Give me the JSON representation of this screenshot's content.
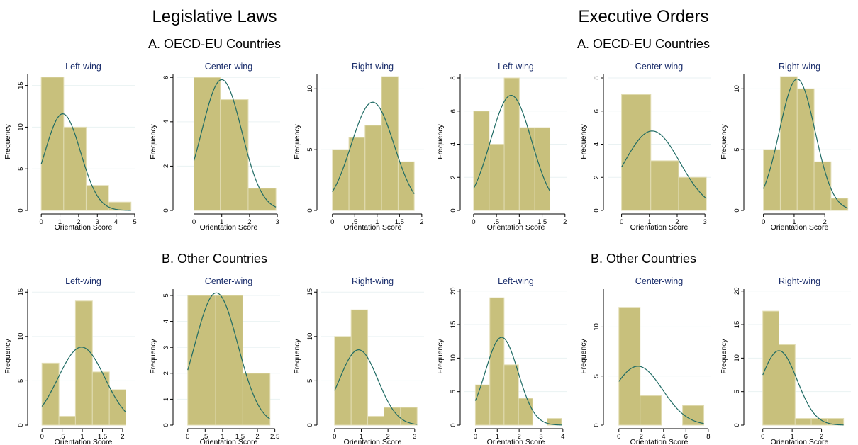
{
  "titles": {
    "left": "Legislative Laws",
    "right": "Executive Orders",
    "panel_a": "A. OECD-EU Countries",
    "panel_b": "B. Other Countries"
  },
  "colors": {
    "bar_fill": "#c8c07c",
    "bar_edge": "#e2ddb4",
    "curve": "#1f6b64",
    "title_text": "#1a2d6b",
    "axis": "#000000",
    "grid": "#eaf2f3"
  },
  "chart_data": [
    {
      "type": "bar",
      "group": "Legislative Laws",
      "panel": "A. OECD-EU Countries",
      "title": "Left-wing",
      "xlabel": "Orientation Score",
      "ylabel": "Frequency",
      "xlim": [
        -0.5,
        5
      ],
      "ylim": [
        0,
        16.5
      ],
      "xticks": [
        0,
        1,
        2,
        3,
        4,
        5
      ],
      "xtick_labels": [
        "0",
        "1",
        "2",
        "3",
        "4",
        "5"
      ],
      "yticks": [
        0,
        5,
        10,
        15
      ],
      "ytick_labels": [
        "0",
        "5",
        "10",
        "15"
      ],
      "bins": [
        {
          "start": 0,
          "end": 1.2,
          "count": 16
        },
        {
          "start": 1.2,
          "end": 2.4,
          "count": 10
        },
        {
          "start": 2.4,
          "end": 3.6,
          "count": 3
        },
        {
          "start": 3.6,
          "end": 4.8,
          "count": 1
        }
      ],
      "normal_curve": {
        "mean": 1.15,
        "sd": 0.95,
        "peak": 11.6
      }
    },
    {
      "type": "bar",
      "group": "Legislative Laws",
      "panel": "A. OECD-EU Countries",
      "title": "Center-wing",
      "xlabel": "Orientation Score",
      "ylabel": "Frequency",
      "xlim": [
        -0.6,
        3.1
      ],
      "ylim": [
        0,
        6.2
      ],
      "xticks": [
        0,
        1,
        2,
        3
      ],
      "xtick_labels": [
        "0",
        "1",
        "2",
        "3"
      ],
      "yticks": [
        0,
        2,
        4,
        6
      ],
      "ytick_labels": [
        "0",
        "2",
        "4",
        "6"
      ],
      "bins": [
        {
          "start": 0,
          "end": 0.95,
          "count": 6
        },
        {
          "start": 0.95,
          "end": 1.95,
          "count": 5
        },
        {
          "start": 1.95,
          "end": 2.95,
          "count": 1
        }
      ],
      "normal_curve": {
        "mean": 1.0,
        "sd": 0.72,
        "peak": 5.9
      }
    },
    {
      "type": "bar",
      "group": "Legislative Laws",
      "panel": "A. OECD-EU Countries",
      "title": "Right-wing",
      "xlabel": "Orientation Score",
      "ylabel": "Frequency",
      "xlim": [
        -0.25,
        2.05
      ],
      "ylim": [
        0,
        11.3
      ],
      "xticks": [
        0,
        0.5,
        1,
        1.5,
        2
      ],
      "xtick_labels": [
        "0",
        ".5",
        "1",
        "1.5",
        "2"
      ],
      "yticks": [
        0,
        5,
        10
      ],
      "ytick_labels": [
        "0",
        "5",
        "10"
      ],
      "bins": [
        {
          "start": 0,
          "end": 0.37,
          "count": 5
        },
        {
          "start": 0.37,
          "end": 0.73,
          "count": 6
        },
        {
          "start": 0.73,
          "end": 1.1,
          "count": 7
        },
        {
          "start": 1.1,
          "end": 1.47,
          "count": 11
        },
        {
          "start": 1.47,
          "end": 1.83,
          "count": 4
        }
      ],
      "normal_curve": {
        "mean": 0.9,
        "sd": 0.48,
        "peak": 8.9
      }
    },
    {
      "type": "bar",
      "group": "Executive Orders",
      "panel": "A. OECD-EU Countries",
      "title": "Left-wing",
      "xlabel": "Orientation Score",
      "ylabel": "Frequency",
      "xlim": [
        -0.2,
        2.05
      ],
      "ylim": [
        0,
        8.3
      ],
      "xticks": [
        0,
        0.5,
        1,
        1.5,
        2
      ],
      "xtick_labels": [
        "0",
        ".5",
        "1",
        "1.5",
        "2"
      ],
      "yticks": [
        0,
        2,
        4,
        6,
        8
      ],
      "ytick_labels": [
        "0",
        "2",
        "4",
        "6",
        "8"
      ],
      "bins": [
        {
          "start": 0,
          "end": 0.34,
          "count": 6
        },
        {
          "start": 0.34,
          "end": 0.67,
          "count": 4
        },
        {
          "start": 0.67,
          "end": 1.0,
          "count": 8
        },
        {
          "start": 1.0,
          "end": 1.34,
          "count": 5
        },
        {
          "start": 1.34,
          "end": 1.67,
          "count": 5
        }
      ],
      "normal_curve": {
        "mean": 0.82,
        "sd": 0.45,
        "peak": 6.95
      }
    },
    {
      "type": "bar",
      "group": "Executive Orders",
      "panel": "A. OECD-EU Countries",
      "title": "Center-wing",
      "xlabel": "Orientation Score",
      "ylabel": "Frequency",
      "xlim": [
        -0.5,
        3.2
      ],
      "ylim": [
        0,
        8.3
      ],
      "xticks": [
        0,
        1,
        2,
        3
      ],
      "xtick_labels": [
        "0",
        "1",
        "2",
        "3"
      ],
      "yticks": [
        0,
        2,
        4,
        6,
        8
      ],
      "ytick_labels": [
        "0",
        "2",
        "4",
        "6",
        "8"
      ],
      "bins": [
        {
          "start": 0,
          "end": 1.05,
          "count": 7
        },
        {
          "start": 1.05,
          "end": 2.05,
          "count": 3
        },
        {
          "start": 2.05,
          "end": 3.05,
          "count": 2
        }
      ],
      "normal_curve": {
        "mean": 1.1,
        "sd": 1.0,
        "peak": 4.8
      }
    },
    {
      "type": "bar",
      "group": "Executive Orders",
      "panel": "A. OECD-EU Countries",
      "title": "Right-wing",
      "xlabel": "Orientation Score",
      "ylabel": "Frequency",
      "xlim": [
        -0.5,
        2.85
      ],
      "ylim": [
        0,
        11.3
      ],
      "xticks": [
        0,
        1,
        2
      ],
      "xtick_labels": [
        "0",
        "1",
        "2"
      ],
      "yticks": [
        0,
        5,
        10
      ],
      "ytick_labels": [
        "0",
        "5",
        "10"
      ],
      "bins": [
        {
          "start": 0,
          "end": 0.55,
          "count": 5
        },
        {
          "start": 0.55,
          "end": 1.1,
          "count": 11
        },
        {
          "start": 1.1,
          "end": 1.65,
          "count": 10
        },
        {
          "start": 1.65,
          "end": 2.2,
          "count": 4
        },
        {
          "start": 2.2,
          "end": 2.75,
          "count": 1
        }
      ],
      "normal_curve": {
        "mean": 1.1,
        "sd": 0.58,
        "peak": 10.8
      }
    },
    {
      "type": "bar",
      "group": "Legislative Laws",
      "panel": "B. Other Countries",
      "title": "Left-wing",
      "xlabel": "Orientation Score",
      "ylabel": "Frequency",
      "xlim": [
        -0.25,
        2.3
      ],
      "ylim": [
        0,
        15.5
      ],
      "xticks": [
        0,
        0.5,
        1,
        1.5,
        2
      ],
      "xtick_labels": [
        "0",
        ".5",
        "1",
        "1.5",
        "2"
      ],
      "yticks": [
        0,
        5,
        10,
        15
      ],
      "ytick_labels": [
        "0",
        "5",
        "10",
        "15"
      ],
      "bins": [
        {
          "start": 0,
          "end": 0.42,
          "count": 7
        },
        {
          "start": 0.42,
          "end": 0.83,
          "count": 1
        },
        {
          "start": 0.83,
          "end": 1.25,
          "count": 14
        },
        {
          "start": 1.25,
          "end": 1.67,
          "count": 6
        },
        {
          "start": 1.67,
          "end": 2.08,
          "count": 4
        }
      ],
      "normal_curve": {
        "mean": 0.98,
        "sd": 0.58,
        "peak": 8.8
      }
    },
    {
      "type": "bar",
      "group": "Legislative Laws",
      "panel": "B. Other Countries",
      "title": "Center-wing",
      "xlabel": "Orientation Score",
      "ylabel": "Frequency",
      "xlim": [
        -0.3,
        2.65
      ],
      "ylim": [
        0,
        5.3
      ],
      "xticks": [
        0,
        0.5,
        1,
        1.5,
        2,
        2.5
      ],
      "xtick_labels": [
        "0",
        ".5",
        "1",
        "1.5",
        "2",
        "2.5"
      ],
      "yticks": [
        0,
        1,
        2,
        3,
        4,
        5
      ],
      "ytick_labels": [
        "0",
        "1",
        "2",
        "3",
        "4",
        "5"
      ],
      "bins": [
        {
          "start": 0,
          "end": 0.8,
          "count": 5
        },
        {
          "start": 0.8,
          "end": 1.58,
          "count": 5
        },
        {
          "start": 1.58,
          "end": 2.36,
          "count": 2
        }
      ],
      "normal_curve": {
        "mean": 0.82,
        "sd": 0.62,
        "peak": 5.1
      }
    },
    {
      "type": "bar",
      "group": "Legislative Laws",
      "panel": "B. Other Countries",
      "title": "Right-wing",
      "xlabel": "Orientation Score",
      "ylabel": "Frequency",
      "xlim": [
        -0.5,
        3.35
      ],
      "ylim": [
        0,
        15.5
      ],
      "xticks": [
        0,
        1,
        2,
        3
      ],
      "xtick_labels": [
        "0",
        "1",
        "2",
        "3"
      ],
      "yticks": [
        0,
        5,
        10,
        15
      ],
      "ytick_labels": [
        "0",
        "5",
        "10",
        "15"
      ],
      "bins": [
        {
          "start": 0,
          "end": 0.62,
          "count": 10
        },
        {
          "start": 0.62,
          "end": 1.24,
          "count": 13
        },
        {
          "start": 1.24,
          "end": 1.85,
          "count": 1
        },
        {
          "start": 1.85,
          "end": 2.47,
          "count": 2
        },
        {
          "start": 2.47,
          "end": 3.09,
          "count": 2
        }
      ],
      "normal_curve": {
        "mean": 0.9,
        "sd": 0.72,
        "peak": 8.5
      }
    },
    {
      "type": "bar",
      "group": "Executive Orders",
      "panel": "B. Other Countries",
      "title": "Left-wing",
      "xlabel": "Orientation Score",
      "ylabel": "Frequency",
      "xlim": [
        -0.5,
        4.2
      ],
      "ylim": [
        0,
        20.5
      ],
      "xticks": [
        0,
        1,
        2,
        3,
        4
      ],
      "xtick_labels": [
        "0",
        "1",
        "2",
        "3",
        "4"
      ],
      "yticks": [
        0,
        5,
        10,
        15,
        20
      ],
      "ytick_labels": [
        "0",
        "5",
        "10",
        "15",
        "20"
      ],
      "bins": [
        {
          "start": 0,
          "end": 0.66,
          "count": 6
        },
        {
          "start": 0.66,
          "end": 1.31,
          "count": 19
        },
        {
          "start": 1.31,
          "end": 1.97,
          "count": 9
        },
        {
          "start": 1.97,
          "end": 2.62,
          "count": 4
        },
        {
          "start": 2.62,
          "end": 3.28,
          "count": 0
        },
        {
          "start": 3.28,
          "end": 3.94,
          "count": 1
        }
      ],
      "normal_curve": {
        "mean": 1.2,
        "sd": 0.75,
        "peak": 13.1
      }
    },
    {
      "type": "bar",
      "group": "Executive Orders",
      "panel": "B. Other Countries",
      "title": "Center-wing",
      "xlabel": "Orientation Score",
      "ylabel": "Frequency",
      "xlim": [
        -1,
        8.2
      ],
      "ylim": [
        0,
        14
      ],
      "xticks": [
        0,
        2,
        4,
        6,
        8
      ],
      "xtick_labels": [
        "0",
        "2",
        "4",
        "6",
        "8"
      ],
      "yticks": [
        0,
        5,
        10
      ],
      "ytick_labels": [
        "0",
        "5",
        "10"
      ],
      "bins": [
        {
          "start": 0,
          "end": 1.9,
          "count": 12
        },
        {
          "start": 1.9,
          "end": 3.8,
          "count": 3
        },
        {
          "start": 3.8,
          "end": 5.7,
          "count": 0
        },
        {
          "start": 5.7,
          "end": 7.6,
          "count": 2
        }
      ],
      "normal_curve": {
        "mean": 1.7,
        "sd": 2.2,
        "peak": 6.0
      }
    },
    {
      "type": "bar",
      "group": "Executive Orders",
      "panel": "B. Other Countries",
      "title": "Right-wing",
      "xlabel": "Orientation Score",
      "ylabel": "Frequency",
      "xlim": [
        -0.5,
        3.0
      ],
      "ylim": [
        0,
        20.5
      ],
      "xticks": [
        0,
        1,
        2
      ],
      "xtick_labels": [
        "0",
        "1",
        "2"
      ],
      "yticks": [
        0,
        5,
        10,
        15,
        20
      ],
      "ytick_labels": [
        "0",
        "5",
        "10",
        "15",
        "20"
      ],
      "bins": [
        {
          "start": 0,
          "end": 0.55,
          "count": 17
        },
        {
          "start": 0.55,
          "end": 1.1,
          "count": 12
        },
        {
          "start": 1.1,
          "end": 1.65,
          "count": 1
        },
        {
          "start": 1.65,
          "end": 2.2,
          "count": 1
        },
        {
          "start": 2.2,
          "end": 2.75,
          "count": 1
        }
      ],
      "normal_curve": {
        "mean": 0.55,
        "sd": 0.62,
        "peak": 11.1
      }
    }
  ]
}
